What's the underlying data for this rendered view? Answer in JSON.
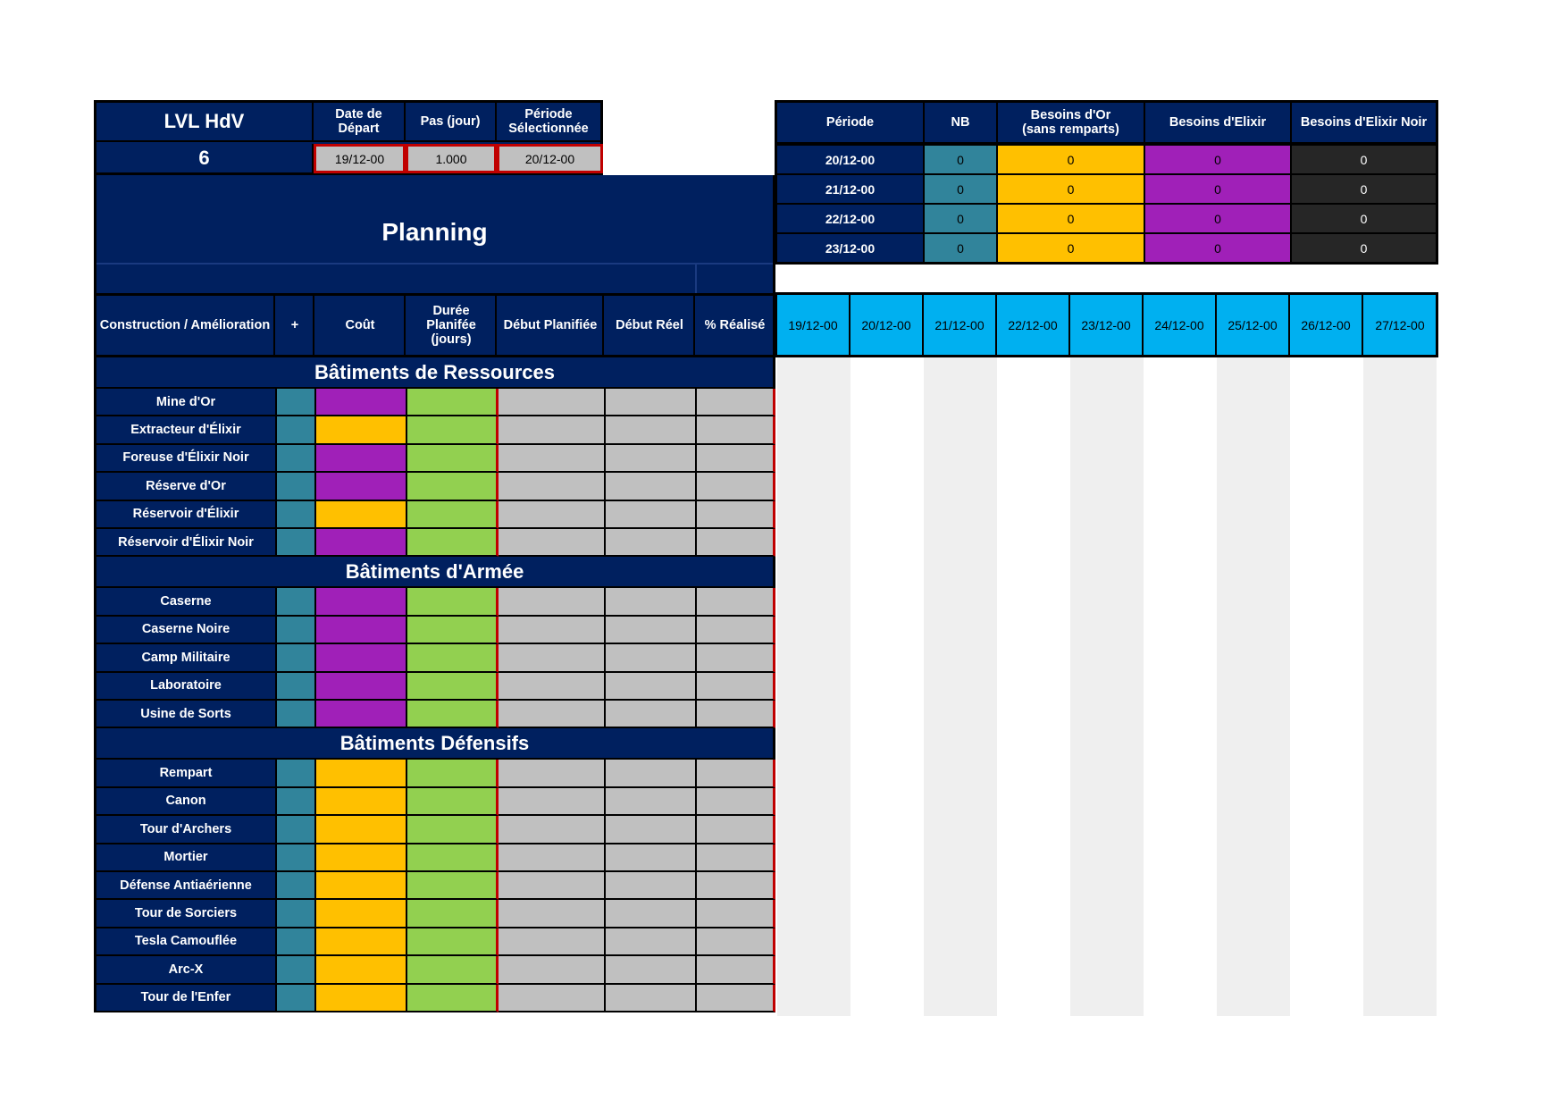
{
  "top_left": {
    "lvl_label": "LVL HdV",
    "lvl_value": "6",
    "start_date_label": "Date de\nDépart",
    "start_date_value": "19/12-00",
    "step_label": "Pas (jour)",
    "step_value": "1.000",
    "period_label": "Période\nSélectionnée",
    "period_value": "20/12-00"
  },
  "planning_title": "Planning",
  "summary": {
    "headers": [
      "Période",
      "NB",
      "Besoins d'Or\n(sans remparts)",
      "Besoins d'Elixir",
      "Besoins d'Elixir Noir"
    ],
    "rows": [
      {
        "period": "20/12-00",
        "nb": "0",
        "gold": "0",
        "elixir": "0",
        "dark": "0"
      },
      {
        "period": "21/12-00",
        "nb": "0",
        "gold": "0",
        "elixir": "0",
        "dark": "0"
      },
      {
        "period": "22/12-00",
        "nb": "0",
        "gold": "0",
        "elixir": "0",
        "dark": "0"
      },
      {
        "period": "23/12-00",
        "nb": "0",
        "gold": "0",
        "elixir": "0",
        "dark": "0"
      }
    ]
  },
  "columns": [
    "Construction / Amélioration",
    "+",
    "Coût",
    "Durée\nPlanifée\n(jours)",
    "Début Planifiée",
    "Début Réel",
    "% Réalisé"
  ],
  "dates": [
    "19/12-00",
    "20/12-00",
    "21/12-00",
    "22/12-00",
    "23/12-00",
    "24/12-00",
    "25/12-00",
    "26/12-00",
    "27/12-00"
  ],
  "sections": [
    {
      "title": "Bâtiments de Ressources",
      "items": [
        {
          "name": "Mine d'Or",
          "cost_color": "#a020b8"
        },
        {
          "name": "Extracteur d'Élixir",
          "cost_color": "#ffc000"
        },
        {
          "name": "Foreuse d'Élixir Noir",
          "cost_color": "#a020b8"
        },
        {
          "name": "Réserve d'Or",
          "cost_color": "#a020b8"
        },
        {
          "name": "Réservoir d'Élixir",
          "cost_color": "#ffc000"
        },
        {
          "name": "Réservoir d'Élixir Noir",
          "cost_color": "#a020b8"
        }
      ]
    },
    {
      "title": "Bâtiments d'Armée",
      "items": [
        {
          "name": "Caserne",
          "cost_color": "#a020b8"
        },
        {
          "name": "Caserne Noire",
          "cost_color": "#a020b8"
        },
        {
          "name": "Camp Militaire",
          "cost_color": "#a020b8"
        },
        {
          "name": "Laboratoire",
          "cost_color": "#a020b8"
        },
        {
          "name": "Usine de Sorts",
          "cost_color": "#a020b8"
        }
      ]
    },
    {
      "title": "Bâtiments Défensifs",
      "items": [
        {
          "name": "Rempart",
          "cost_color": "#ffc000"
        },
        {
          "name": "Canon",
          "cost_color": "#ffc000"
        },
        {
          "name": "Tour d'Archers",
          "cost_color": "#ffc000"
        },
        {
          "name": "Mortier",
          "cost_color": "#ffc000"
        },
        {
          "name": "Défense Antiaérienne",
          "cost_color": "#ffc000"
        },
        {
          "name": "Tour de Sorciers",
          "cost_color": "#ffc000"
        },
        {
          "name": "Tesla Camouflée",
          "cost_color": "#ffc000"
        },
        {
          "name": "Arc-X",
          "cost_color": "#ffc000"
        },
        {
          "name": "Tour de l'Enfer",
          "cost_color": "#ffc000"
        }
      ]
    }
  ]
}
